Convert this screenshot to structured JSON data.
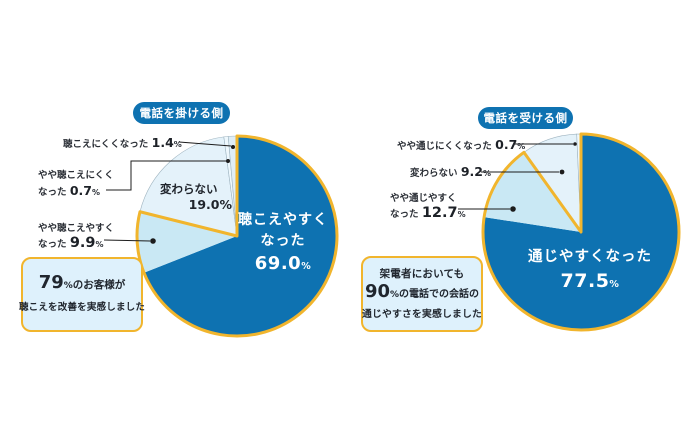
{
  "percent_sign": "%",
  "colors": {
    "primary": "#0e72b1",
    "medium": "#c9e8f4",
    "light": "#e4f2fa",
    "pale": "#eef8fd",
    "light_gray_blue": "#dfeef7",
    "gold": "#f1b52d",
    "slice_divider": "#9fb4c0",
    "callout_bg": "#def1fc"
  },
  "chart_data": [
    {
      "type": "pie",
      "badge": "電話を掛ける側",
      "legend_position": "outside-left",
      "slices": [
        {
          "label": "聴こえやすくなった",
          "value": 69.0,
          "color": "primary",
          "emphasis": true
        },
        {
          "label": "やや聴こえやすくなった",
          "value": 9.9,
          "color": "medium",
          "emphasis": true
        },
        {
          "label": "変わらない",
          "value": 19.0,
          "color": "light",
          "emphasis": false
        },
        {
          "label": "やや聴こえにくくなった",
          "value": 0.7,
          "color": "pale",
          "emphasis": false
        },
        {
          "label": "聴こえにくくなった",
          "value": 1.4,
          "color": "light_gray_blue",
          "emphasis": false
        }
      ],
      "main_label": {
        "line1": "聴こえやすく",
        "line2": "なった",
        "value": "69.0"
      },
      "inner_label": {
        "text": "変わらない",
        "value": "19.0%"
      },
      "ext_labels": [
        {
          "text": "聴こえにくくなった",
          "value": "1.4"
        },
        {
          "line1": "やや聴こえにくく",
          "line2": "なった",
          "value": "0.7"
        },
        {
          "line1": "やや聴こえやすく",
          "line2": "なった",
          "value": "9.9"
        }
      ],
      "callout": {
        "big": "79",
        "line1_rest": "のお客様が",
        "line2": "聴こえを改善を実感しました"
      }
    },
    {
      "type": "pie",
      "badge": "電話を受ける側",
      "legend_position": "outside-left",
      "slices": [
        {
          "label": "通じやすくなった",
          "value": 77.5,
          "color": "primary",
          "emphasis": true
        },
        {
          "label": "やや通じやすくなった",
          "value": 12.7,
          "color": "medium",
          "emphasis": true
        },
        {
          "label": "変わらない",
          "value": 9.2,
          "color": "light",
          "emphasis": false
        },
        {
          "label": "やや通じにくくなった",
          "value": 0.7,
          "color": "pale",
          "emphasis": false
        }
      ],
      "main_label": {
        "line1": "通じやすくなった",
        "value": "77.5"
      },
      "ext_labels": [
        {
          "text": "やや通じにくくなった",
          "value": "0.7"
        },
        {
          "text": "変わらない",
          "value": "9.2"
        },
        {
          "line1": "やや通じやすく",
          "line2": "なった",
          "value": "12.7"
        }
      ],
      "callout": {
        "line1": "架電者においても",
        "big": "90",
        "line2_rest": "の電話での会話の",
        "line3": "通じやすさを実感しました"
      }
    }
  ]
}
